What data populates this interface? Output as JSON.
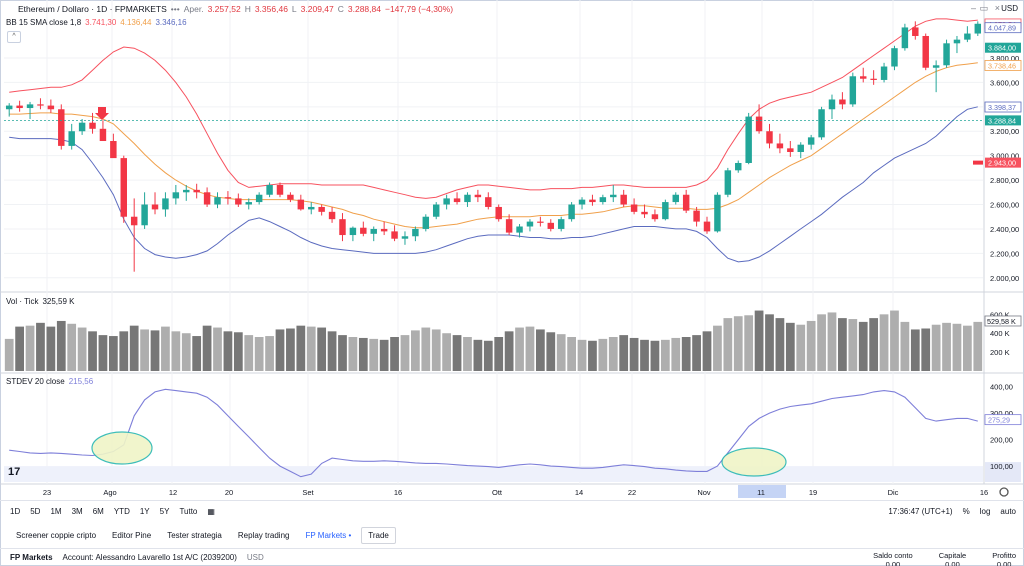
{
  "header": {
    "symbol": "Ethereum / Dollaro · 1D · FPMARKETS",
    "apert_label": "Aper.",
    "apert": "3.257,52",
    "max_label": "Max.",
    "max": "3.356,46",
    "min_label": "Min.",
    "min": "3.209,47",
    "close_label": "Chius.",
    "close": "3.288,84",
    "change": "−147,79 (−4,30%)",
    "currency": "USD",
    "collapse": "^",
    "more": "•••"
  },
  "bb_legend": {
    "label": "BB 15 SMA close 1,8",
    "upper": "3.741,30",
    "middle": "4.136,44",
    "lower": "3.346,16"
  },
  "vol_legend": {
    "label": "Vol · Tick",
    "value": "325,59 K"
  },
  "stdev_legend": {
    "label": "STDEV 20 close",
    "value": "215,56"
  },
  "price_axis": {
    "ticks": [
      "3.800,00",
      "3.600,00",
      "3.400,00",
      "3.200,00",
      "3.000,00",
      "2.800,00",
      "2.600,00",
      "2.400,00",
      "2.200,00",
      "2.000,00"
    ],
    "badges": [
      {
        "text": "4.078,54",
        "value": 4078.54,
        "color": "#f7525f",
        "fill": false
      },
      {
        "text": "4.047,89",
        "value": 4047.89,
        "color": "#5b6bbf",
        "fill": false
      },
      {
        "text": "3.884,00",
        "value": 3884,
        "color": "#22a699",
        "fill": true
      },
      {
        "text": "3.738,46",
        "value": 3738.46,
        "color": "#f0a04b",
        "fill": false
      },
      {
        "text": "3.398,37",
        "value": 3398.37,
        "color": "#5b6bbf",
        "fill": false
      },
      {
        "text": "3.288,84",
        "value": 3288.84,
        "color": "#22a699",
        "fill": true
      },
      {
        "text": "2.943,00",
        "value": 2943,
        "color": "#f7525f",
        "fill": true
      }
    ]
  },
  "vol_axis": {
    "ticks": [
      "600 K",
      "400 K",
      "200 K"
    ],
    "badge": "529,58 K"
  },
  "stdev_axis": {
    "ticks": [
      "400,00",
      "300,00",
      "200,00",
      "100,00"
    ],
    "badge": "275,29"
  },
  "time_axis": {
    "labels": [
      "23",
      "Ago",
      "12",
      "20",
      "Set",
      "16",
      "Ott",
      "14",
      "22",
      "Nov",
      "11",
      "19",
      "Dic",
      "16"
    ],
    "highlight": "11"
  },
  "toolbar": {
    "ranges": [
      "1D",
      "5D",
      "1M",
      "3M",
      "6M",
      "YTD",
      "1Y",
      "5Y",
      "Tutto"
    ],
    "time": "17:36:47 (UTC+1)",
    "pct": "%",
    "log": "log",
    "auto": "auto"
  },
  "tabs": [
    "Screener coppie cripto",
    "Editor Pine",
    "Tester strategia",
    "Replay trading",
    "FP Markets",
    "Trade"
  ],
  "tabs_active": "FP Markets",
  "account": {
    "broker": "FP Markets",
    "text": "Account: Alessandro Lavarello 1st A/C (2039200)",
    "currency": "USD",
    "stats": [
      {
        "label": "Saldo conto",
        "value": "0,00"
      },
      {
        "label": "Capitale",
        "value": "0,00"
      },
      {
        "label": "Profitto",
        "value": "0,00"
      }
    ]
  },
  "logo": "17",
  "colors": {
    "up": "#22a699",
    "down": "#f23645",
    "upper_band": "#f7525f",
    "middle_band": "#f0a04b",
    "lower_band": "#5b6bbf",
    "stdev": "#7e7fd9",
    "volume": "#8d8d8d",
    "ellipse_fill": "#f0f5c7",
    "ellipse_stroke": "#2ab7b3"
  },
  "chart_data": {
    "type": "candlestick",
    "price_ylim": [
      1900,
      4160
    ],
    "candles": [
      [
        3380,
        3430,
        3320,
        3410
      ],
      [
        3410,
        3450,
        3360,
        3390
      ],
      [
        3390,
        3440,
        3300,
        3420
      ],
      [
        3420,
        3470,
        3380,
        3410
      ],
      [
        3410,
        3460,
        3350,
        3380
      ],
      [
        3380,
        3420,
        3050,
        3080
      ],
      [
        3080,
        3260,
        3050,
        3200
      ],
      [
        3200,
        3300,
        3170,
        3270
      ],
      [
        3270,
        3350,
        3180,
        3220
      ],
      [
        3220,
        3290,
        3120,
        3120
      ],
      [
        3120,
        3180,
        3000,
        2980
      ],
      [
        2980,
        3000,
        2450,
        2500
      ],
      [
        2500,
        2650,
        2050,
        2430
      ],
      [
        2430,
        2700,
        2400,
        2600
      ],
      [
        2600,
        2700,
        2520,
        2560
      ],
      [
        2560,
        2700,
        2500,
        2650
      ],
      [
        2650,
        2760,
        2600,
        2700
      ],
      [
        2700,
        2760,
        2630,
        2720
      ],
      [
        2720,
        2770,
        2650,
        2700
      ],
      [
        2700,
        2740,
        2580,
        2600
      ],
      [
        2600,
        2700,
        2570,
        2660
      ],
      [
        2660,
        2710,
        2600,
        2650
      ],
      [
        2650,
        2690,
        2580,
        2600
      ],
      [
        2600,
        2650,
        2560,
        2620
      ],
      [
        2620,
        2700,
        2600,
        2680
      ],
      [
        2680,
        2780,
        2660,
        2760
      ],
      [
        2760,
        2780,
        2660,
        2680
      ],
      [
        2680,
        2700,
        2620,
        2640
      ],
      [
        2640,
        2680,
        2550,
        2560
      ],
      [
        2560,
        2620,
        2520,
        2580
      ],
      [
        2580,
        2600,
        2510,
        2540
      ],
      [
        2540,
        2580,
        2450,
        2480
      ],
      [
        2480,
        2530,
        2300,
        2350
      ],
      [
        2350,
        2420,
        2300,
        2410
      ],
      [
        2410,
        2460,
        2340,
        2360
      ],
      [
        2360,
        2420,
        2300,
        2400
      ],
      [
        2400,
        2460,
        2350,
        2380
      ],
      [
        2380,
        2430,
        2300,
        2320
      ],
      [
        2320,
        2380,
        2270,
        2340
      ],
      [
        2340,
        2420,
        2300,
        2400
      ],
      [
        2400,
        2520,
        2380,
        2500
      ],
      [
        2500,
        2620,
        2480,
        2600
      ],
      [
        2600,
        2680,
        2560,
        2650
      ],
      [
        2650,
        2700,
        2600,
        2620
      ],
      [
        2620,
        2700,
        2580,
        2680
      ],
      [
        2680,
        2720,
        2620,
        2660
      ],
      [
        2660,
        2700,
        2560,
        2580
      ],
      [
        2580,
        2600,
        2460,
        2480
      ],
      [
        2480,
        2520,
        2350,
        2370
      ],
      [
        2370,
        2440,
        2330,
        2420
      ],
      [
        2420,
        2480,
        2380,
        2460
      ],
      [
        2460,
        2500,
        2420,
        2450
      ],
      [
        2450,
        2480,
        2380,
        2400
      ],
      [
        2400,
        2500,
        2380,
        2480
      ],
      [
        2480,
        2620,
        2460,
        2600
      ],
      [
        2600,
        2660,
        2560,
        2640
      ],
      [
        2640,
        2680,
        2590,
        2620
      ],
      [
        2620,
        2680,
        2600,
        2660
      ],
      [
        2660,
        2760,
        2620,
        2680
      ],
      [
        2680,
        2720,
        2580,
        2600
      ],
      [
        2600,
        2650,
        2520,
        2540
      ],
      [
        2540,
        2600,
        2490,
        2520
      ],
      [
        2520,
        2560,
        2460,
        2480
      ],
      [
        2480,
        2640,
        2470,
        2620
      ],
      [
        2620,
        2700,
        2600,
        2680
      ],
      [
        2680,
        2720,
        2530,
        2550
      ],
      [
        2550,
        2580,
        2420,
        2460
      ],
      [
        2460,
        2500,
        2360,
        2380
      ],
      [
        2380,
        2700,
        2370,
        2680
      ],
      [
        2680,
        2900,
        2660,
        2880
      ],
      [
        2880,
        2960,
        2860,
        2940
      ],
      [
        2940,
        3350,
        2930,
        3320
      ],
      [
        3320,
        3420,
        3180,
        3200
      ],
      [
        3200,
        3260,
        3060,
        3100
      ],
      [
        3100,
        3180,
        3020,
        3060
      ],
      [
        3060,
        3120,
        2990,
        3030
      ],
      [
        3030,
        3110,
        2980,
        3090
      ],
      [
        3090,
        3170,
        3050,
        3150
      ],
      [
        3150,
        3400,
        3130,
        3380
      ],
      [
        3380,
        3500,
        3300,
        3460
      ],
      [
        3460,
        3520,
        3380,
        3420
      ],
      [
        3420,
        3680,
        3400,
        3650
      ],
      [
        3650,
        3720,
        3600,
        3630
      ],
      [
        3630,
        3700,
        3580,
        3620
      ],
      [
        3620,
        3760,
        3600,
        3730
      ],
      [
        3730,
        3900,
        3700,
        3880
      ],
      [
        3880,
        4080,
        3860,
        4050
      ],
      [
        4050,
        4100,
        3950,
        3980
      ],
      [
        3980,
        4000,
        3700,
        3720
      ],
      [
        3720,
        3780,
        3520,
        3740
      ],
      [
        3740,
        3950,
        3720,
        3920
      ],
      [
        3920,
        3980,
        3840,
        3950
      ],
      [
        3950,
        4060,
        3930,
        4000
      ],
      [
        4000,
        4100,
        3980,
        4080
      ]
    ],
    "bb_upper": [
      3520,
      3530,
      3540,
      3550,
      3560,
      3560,
      3580,
      3620,
      3700,
      3780,
      3850,
      3890,
      3880,
      3840,
      3780,
      3700,
      3600,
      3480,
      3340,
      3180,
      3020,
      2880,
      2780,
      2740,
      2750,
      2760,
      2770,
      2770,
      2770,
      2770,
      2760,
      2760,
      2760,
      2760,
      2760,
      2740,
      2720,
      2700,
      2680,
      2660,
      2650,
      2660,
      2690,
      2720,
      2740,
      2760,
      2760,
      2750,
      2740,
      2730,
      2720,
      2720,
      2730,
      2730,
      2730,
      2740,
      2740,
      2750,
      2760,
      2760,
      2750,
      2740,
      2740,
      2740,
      2740,
      2740,
      2760,
      2800,
      2900,
      3050,
      3180,
      3300,
      3380,
      3430,
      3460,
      3480,
      3500,
      3520,
      3560,
      3600,
      3640,
      3700,
      3760,
      3820,
      3880,
      3940,
      4000,
      4060,
      4100,
      4120,
      4120,
      4110,
      4100,
      4110
    ],
    "bb_middle": [
      3340,
      3340,
      3345,
      3350,
      3350,
      3340,
      3340,
      3330,
      3320,
      3300,
      3260,
      3180,
      3100,
      3010,
      2930,
      2860,
      2800,
      2750,
      2710,
      2680,
      2660,
      2650,
      2640,
      2640,
      2640,
      2640,
      2640,
      2640,
      2630,
      2620,
      2600,
      2580,
      2560,
      2530,
      2510,
      2480,
      2460,
      2440,
      2420,
      2410,
      2410,
      2420,
      2430,
      2440,
      2460,
      2480,
      2490,
      2500,
      2500,
      2500,
      2500,
      2510,
      2510,
      2510,
      2520,
      2520,
      2530,
      2540,
      2560,
      2580,
      2590,
      2590,
      2580,
      2570,
      2570,
      2570,
      2560,
      2560,
      2570,
      2600,
      2640,
      2700,
      2760,
      2820,
      2870,
      2920,
      2960,
      3000,
      3060,
      3120,
      3180,
      3240,
      3300,
      3360,
      3420,
      3480,
      3540,
      3600,
      3650,
      3690,
      3720,
      3740,
      3750,
      3760
    ],
    "bb_lower": [
      3150,
      3140,
      3140,
      3140,
      3140,
      3130,
      3110,
      3050,
      2940,
      2820,
      2680,
      2480,
      2330,
      2240,
      2190,
      2170,
      2160,
      2170,
      2190,
      2220,
      2280,
      2350,
      2410,
      2470,
      2490,
      2460,
      2420,
      2380,
      2330,
      2290,
      2260,
      2240,
      2230,
      2220,
      2210,
      2200,
      2200,
      2200,
      2200,
      2200,
      2210,
      2230,
      2260,
      2290,
      2320,
      2340,
      2350,
      2350,
      2350,
      2340,
      2330,
      2330,
      2320,
      2320,
      2330,
      2330,
      2340,
      2360,
      2380,
      2400,
      2420,
      2420,
      2420,
      2410,
      2400,
      2400,
      2380,
      2330,
      2240,
      2160,
      2130,
      2140,
      2170,
      2220,
      2280,
      2340,
      2400,
      2460,
      2520,
      2590,
      2660,
      2720,
      2780,
      2860,
      2920,
      2980,
      3020,
      3060,
      3100,
      3160,
      3240,
      3320,
      3380,
      3400
    ],
    "volume_ylim": [
      0,
      720000
    ],
    "volume": [
      340000,
      470000,
      480000,
      510000,
      470000,
      530000,
      500000,
      460000,
      420000,
      380000,
      370000,
      420000,
      480000,
      440000,
      430000,
      470000,
      420000,
      400000,
      370000,
      480000,
      460000,
      420000,
      410000,
      380000,
      360000,
      370000,
      440000,
      450000,
      480000,
      470000,
      460000,
      420000,
      380000,
      360000,
      350000,
      340000,
      330000,
      360000,
      380000,
      430000,
      460000,
      440000,
      400000,
      380000,
      360000,
      330000,
      320000,
      360000,
      420000,
      460000,
      470000,
      440000,
      410000,
      390000,
      360000,
      330000,
      320000,
      340000,
      360000,
      380000,
      350000,
      330000,
      320000,
      330000,
      350000,
      360000,
      380000,
      420000,
      480000,
      560000,
      580000,
      590000,
      640000,
      600000,
      560000,
      510000,
      490000,
      530000,
      600000,
      620000,
      560000,
      550000,
      520000,
      560000,
      600000,
      640000,
      520000,
      440000,
      450000,
      490000,
      510000,
      500000,
      480000,
      520000
    ],
    "stdev_ylim": [
      40,
      440
    ],
    "stdev": [
      160,
      155,
      150,
      148,
      150,
      148,
      145,
      142,
      140,
      145,
      155,
      180,
      290,
      350,
      380,
      390,
      385,
      380,
      375,
      360,
      330,
      290,
      250,
      210,
      170,
      130,
      100,
      80,
      60,
      70,
      110,
      130,
      125,
      120,
      118,
      118,
      120,
      118,
      115,
      112,
      110,
      110,
      108,
      105,
      102,
      100,
      98,
      95,
      100,
      105,
      108,
      105,
      100,
      98,
      95,
      92,
      92,
      95,
      100,
      105,
      102,
      98,
      92,
      90,
      85,
      82,
      80,
      80,
      100,
      150,
      200,
      250,
      280,
      300,
      315,
      325,
      330,
      335,
      345,
      355,
      360,
      365,
      370,
      380,
      385,
      380,
      360,
      320,
      280,
      270,
      275,
      280,
      280,
      270
    ]
  }
}
